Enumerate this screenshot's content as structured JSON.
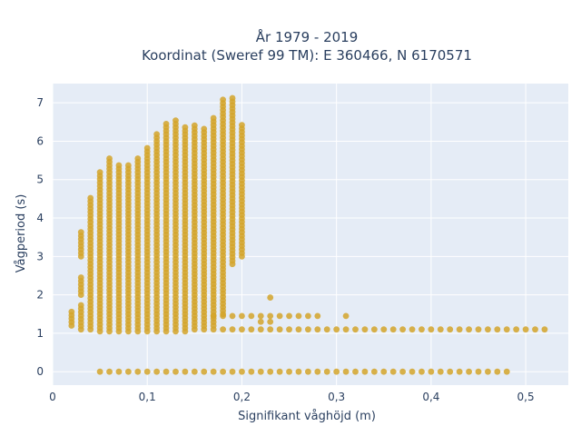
{
  "chart_data": {
    "type": "scatter",
    "title_line1": "År 1979 - 2019",
    "title_line2": "Koordinat (Sweref 99 TM): E 360466, N 6170571",
    "xlabel": "Signifikant våghöjd (m)",
    "ylabel": "Vågperiod (s)",
    "xlim": [
      0,
      0.545
    ],
    "ylim": [
      -0.35,
      7.5
    ],
    "x_ticks": [
      0,
      0.1,
      0.2,
      0.3,
      0.4,
      0.5
    ],
    "x_tick_labels": [
      "0",
      "0,1",
      "0,2",
      "0,3",
      "0,4",
      "0,5"
    ],
    "y_ticks": [
      0,
      1,
      2,
      3,
      4,
      5,
      6,
      7
    ],
    "y_tick_labels": [
      "0",
      "1",
      "2",
      "3",
      "4",
      "5",
      "6",
      "7"
    ],
    "grid": true,
    "marker_color": "#d4a52a",
    "plot_bg": "#e5ecf6",
    "columns": [
      {
        "x": 0.02,
        "segments": [
          [
            1.2,
            1.6
          ]
        ]
      },
      {
        "x": 0.03,
        "segments": [
          [
            1.1,
            1.8
          ],
          [
            2.0,
            2.5
          ],
          [
            3.0,
            3.7
          ]
        ]
      },
      {
        "x": 0.04,
        "segments": [
          [
            1.1,
            4.6
          ]
        ]
      },
      {
        "x": 0.05,
        "segments": [
          [
            1.05,
            5.2
          ]
        ]
      },
      {
        "x": 0.06,
        "segments": [
          [
            1.05,
            5.6
          ]
        ]
      },
      {
        "x": 0.07,
        "segments": [
          [
            1.05,
            5.45
          ]
        ]
      },
      {
        "x": 0.08,
        "segments": [
          [
            1.05,
            5.4
          ]
        ]
      },
      {
        "x": 0.09,
        "segments": [
          [
            1.05,
            5.6
          ]
        ]
      },
      {
        "x": 0.1,
        "segments": [
          [
            1.05,
            5.85
          ]
        ]
      },
      {
        "x": 0.11,
        "segments": [
          [
            1.05,
            6.2
          ]
        ]
      },
      {
        "x": 0.12,
        "segments": [
          [
            1.05,
            6.45
          ]
        ]
      },
      {
        "x": 0.13,
        "segments": [
          [
            1.05,
            6.6
          ]
        ]
      },
      {
        "x": 0.14,
        "segments": [
          [
            1.05,
            6.4
          ]
        ]
      },
      {
        "x": 0.15,
        "segments": [
          [
            1.1,
            6.45
          ]
        ]
      },
      {
        "x": 0.16,
        "segments": [
          [
            1.1,
            6.35
          ]
        ]
      },
      {
        "x": 0.17,
        "segments": [
          [
            1.2,
            6.6
          ]
        ]
      },
      {
        "x": 0.18,
        "segments": [
          [
            1.5,
            7.15
          ]
        ]
      },
      {
        "x": 0.19,
        "segments": [
          [
            2.8,
            7.15
          ]
        ]
      },
      {
        "x": 0.2,
        "segments": [
          [
            3.0,
            6.5
          ]
        ]
      }
    ],
    "tail_rows": [
      {
        "y": 1.45,
        "x_from": 0.17,
        "x_to": 0.28,
        "step": 0.01
      },
      {
        "y": 1.1,
        "x_from": 0.17,
        "x_to": 0.52,
        "step": 0.01
      },
      {
        "y": 0.0,
        "x_from": 0.05,
        "x_to": 0.48,
        "step": 0.01
      }
    ],
    "outliers": [
      [
        0.23,
        1.93
      ],
      [
        0.31,
        1.45
      ],
      [
        0.22,
        1.3
      ],
      [
        0.23,
        1.3
      ]
    ]
  }
}
